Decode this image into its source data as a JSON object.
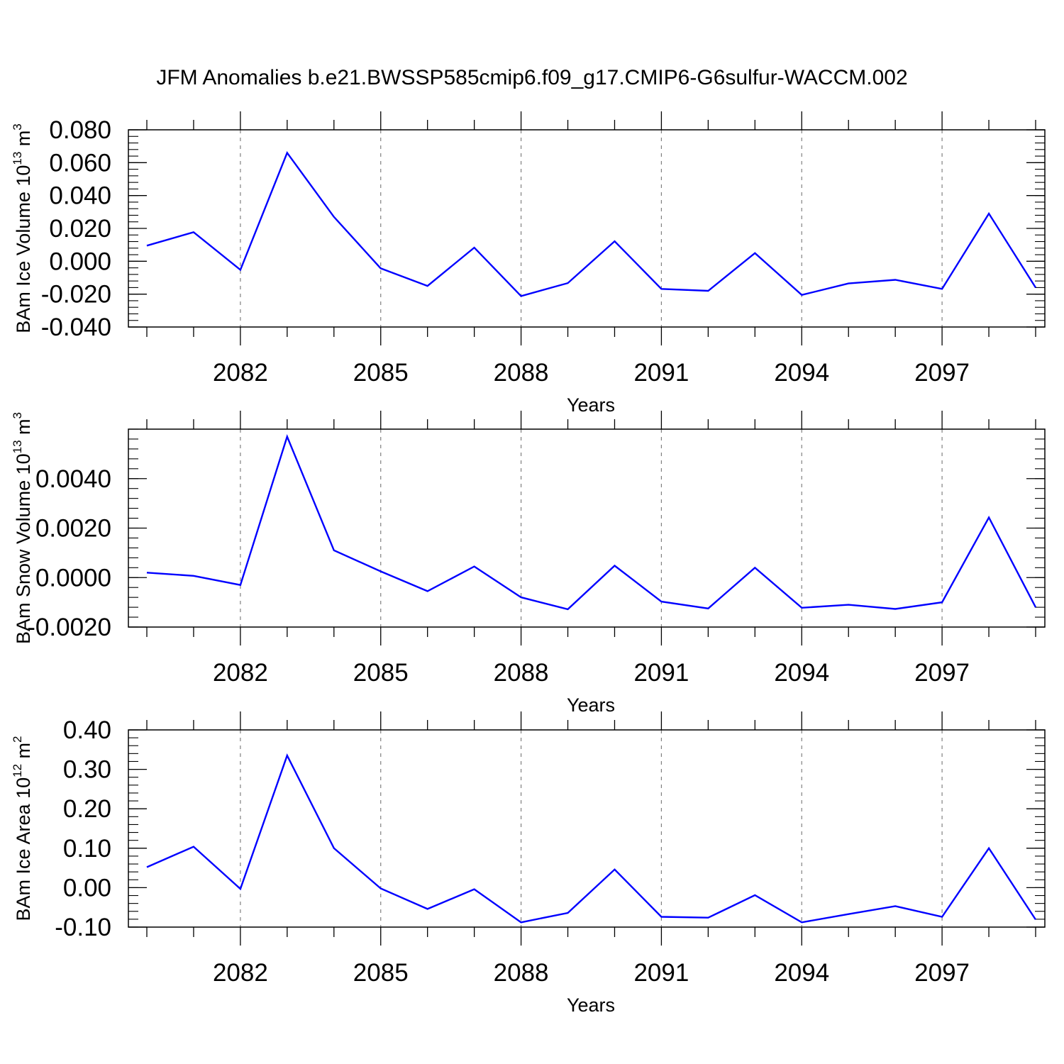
{
  "title": "JFM Anomalies b.e21.BWSSP585cmip6.f09_g17.CMIP6-G6sulfur-WACCM.002",
  "colors": {
    "series": "#0000ff",
    "axis": "#000000",
    "grid": "#808080",
    "background": "#ffffff"
  },
  "chart_data": [
    {
      "type": "line",
      "ylabel": {
        "base": "BAm Ice Volume 10",
        "exponent": "13",
        "unit": " m",
        "unit_exponent": "3"
      },
      "xlabel": "Years",
      "xlim": [
        2080,
        2099
      ],
      "ylim": [
        -0.04,
        0.08
      ],
      "x_ticks": [
        2082,
        2085,
        2088,
        2091,
        2094,
        2097
      ],
      "y_ticks": [
        -0.04,
        -0.02,
        0.0,
        0.02,
        0.04,
        0.06,
        0.08
      ],
      "y_tick_labels": [
        "-0.040",
        "-0.020",
        "0.000",
        "0.020",
        "0.040",
        "0.060",
        "0.080"
      ],
      "grid": "vertical dashed at labeled years",
      "x": [
        2080,
        2081,
        2082,
        2083,
        2084,
        2085,
        2086,
        2087,
        2088,
        2089,
        2090,
        2091,
        2092,
        2093,
        2094,
        2095,
        2096,
        2097,
        2098,
        2099
      ],
      "values": [
        0.0095,
        0.0177,
        -0.0052,
        0.066,
        0.027,
        -0.0043,
        -0.015,
        0.0083,
        -0.0212,
        -0.0133,
        0.0122,
        -0.0168,
        -0.018,
        0.005,
        -0.0205,
        -0.0135,
        -0.0113,
        -0.0168,
        0.029,
        -0.016
      ]
    },
    {
      "type": "line",
      "ylabel": {
        "base": "BAm Snow Volume 10",
        "exponent": "13",
        "unit": " m",
        "unit_exponent": "3"
      },
      "xlabel": "Years",
      "xlim": [
        2080,
        2099
      ],
      "ylim": [
        -0.002,
        0.006
      ],
      "x_ticks": [
        2082,
        2085,
        2088,
        2091,
        2094,
        2097
      ],
      "y_ticks": [
        -0.002,
        0.0,
        0.002,
        0.004
      ],
      "y_tick_labels": [
        "-0.0020",
        "0.0000",
        "0.0020",
        "0.0040"
      ],
      "grid": "vertical dashed at labeled years",
      "x": [
        2080,
        2081,
        2082,
        2083,
        2084,
        2085,
        2086,
        2087,
        2088,
        2089,
        2090,
        2091,
        2092,
        2093,
        2094,
        2095,
        2096,
        2097,
        2098,
        2099
      ],
      "values": [
        0.0002,
        7e-05,
        -0.0003,
        0.0057,
        0.0011,
        0.00025,
        -0.00055,
        0.00045,
        -0.0008,
        -0.00128,
        0.00048,
        -0.00097,
        -0.00125,
        0.0004,
        -0.00122,
        -0.0011,
        -0.00127,
        -0.001,
        0.00243,
        -0.0012
      ]
    },
    {
      "type": "line",
      "ylabel": {
        "base": "BAm Ice Area 10",
        "exponent": "12",
        "unit": " m",
        "unit_exponent": "2"
      },
      "xlabel": "Years",
      "xlim": [
        2080,
        2099
      ],
      "ylim": [
        -0.1,
        0.4
      ],
      "x_ticks": [
        2082,
        2085,
        2088,
        2091,
        2094,
        2097
      ],
      "y_ticks": [
        -0.1,
        0.0,
        0.1,
        0.2,
        0.3,
        0.4
      ],
      "y_tick_labels": [
        "-0.10",
        "0.00",
        "0.10",
        "0.20",
        "0.30",
        "0.40"
      ],
      "grid": "vertical dashed at labeled years",
      "x": [
        2080,
        2081,
        2082,
        2083,
        2084,
        2085,
        2086,
        2087,
        2088,
        2089,
        2090,
        2091,
        2092,
        2093,
        2094,
        2095,
        2096,
        2097,
        2098,
        2099
      ],
      "values": [
        0.052,
        0.104,
        -0.003,
        0.335,
        0.1,
        -0.002,
        -0.054,
        -0.004,
        -0.088,
        -0.064,
        0.046,
        -0.074,
        -0.076,
        -0.019,
        -0.088,
        -0.067,
        -0.047,
        -0.074,
        0.1,
        -0.081
      ]
    }
  ]
}
